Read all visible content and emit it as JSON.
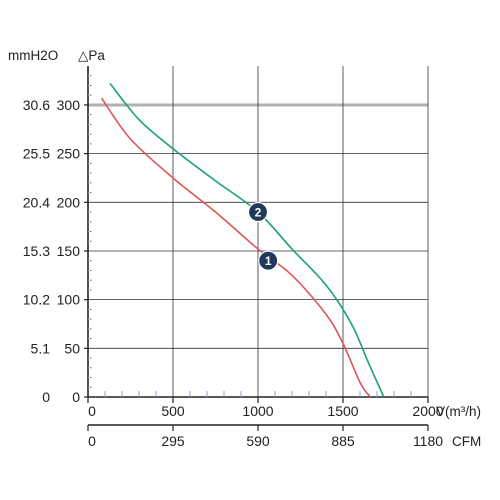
{
  "chart_data": {
    "type": "line",
    "title": "",
    "xlabel": "V(m³/h)",
    "x_secondary_label": "CFM",
    "y_left_outer_label": "mmH2O",
    "y_left_inner_label": "△Pa",
    "xlim": [
      0,
      2000
    ],
    "ylim": [
      0,
      340
    ],
    "grid": true,
    "x_ticks": [
      "0",
      "500",
      "1000",
      "1500",
      "2000"
    ],
    "x_tick_values": [
      0,
      500,
      1000,
      1500,
      2000
    ],
    "x_secondary_ticks": [
      "0",
      "295",
      "590",
      "885",
      "1180"
    ],
    "y_ticks_pa": [
      "0",
      "50",
      "100",
      "150",
      "200",
      "250",
      "300"
    ],
    "y_tick_values": [
      0,
      50,
      100,
      150,
      200,
      250,
      300
    ],
    "y_ticks_mmh2o": [
      "0",
      "5.1",
      "10.2",
      "15.3",
      "20.4",
      "25.5",
      "30.6"
    ],
    "reference_line_y": 300,
    "series": [
      {
        "name": "1",
        "color": "#e05555",
        "x": [
          80,
          250,
          500,
          750,
          1000,
          1200,
          1400,
          1500,
          1600,
          1660
        ],
        "y": [
          307,
          265,
          225,
          190,
          152,
          125,
          85,
          55,
          15,
          0
        ]
      },
      {
        "name": "2",
        "color": "#1aa07a",
        "x": [
          130,
          300,
          500,
          750,
          1000,
          1200,
          1400,
          1550,
          1650,
          1740
        ],
        "y": [
          322,
          285,
          255,
          222,
          190,
          152,
          115,
          75,
          35,
          0
        ]
      }
    ],
    "markers": [
      {
        "label": "1",
        "x": 1060,
        "y": 140
      },
      {
        "label": "2",
        "x": 1000,
        "y": 190
      }
    ]
  }
}
